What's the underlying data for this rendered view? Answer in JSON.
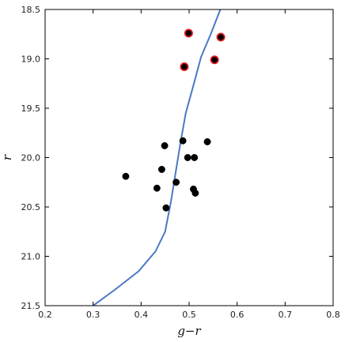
{
  "chart_data": {
    "type": "scatter",
    "xlabel": "g−r",
    "ylabel": "r",
    "xlim": [
      0.2,
      0.8
    ],
    "ylim": [
      21.5,
      18.5
    ],
    "y_inverted": true,
    "grid": false,
    "x_ticks": [
      "0.2",
      "0.3",
      "0.4",
      "0.5",
      "0.6",
      "0.7",
      "0.8"
    ],
    "y_ticks": [
      "18.5",
      "19.0",
      "19.5",
      "20.0",
      "20.5",
      "21.0",
      "21.5"
    ],
    "series": [
      {
        "kind": "line",
        "color": "#4a78c4",
        "points": [
          [
            0.3,
            21.5
          ],
          [
            0.345,
            21.34
          ],
          [
            0.395,
            21.15
          ],
          [
            0.43,
            20.95
          ],
          [
            0.45,
            20.75
          ],
          [
            0.462,
            20.45
          ],
          [
            0.472,
            20.15
          ],
          [
            0.482,
            19.85
          ],
          [
            0.493,
            19.55
          ],
          [
            0.51,
            19.25
          ],
          [
            0.525,
            18.98
          ],
          [
            0.545,
            18.75
          ],
          [
            0.565,
            18.5
          ]
        ]
      },
      {
        "kind": "scatter",
        "marker_color": "#000000",
        "edge_color": "#000000",
        "points": [
          [
            0.368,
            20.19
          ],
          [
            0.433,
            20.31
          ],
          [
            0.443,
            20.12
          ],
          [
            0.449,
            19.88
          ],
          [
            0.452,
            20.51
          ],
          [
            0.473,
            20.25
          ],
          [
            0.487,
            19.83
          ],
          [
            0.497,
            20.0
          ],
          [
            0.509,
            20.32
          ],
          [
            0.511,
            20.0
          ],
          [
            0.513,
            20.36
          ],
          [
            0.538,
            19.84
          ]
        ]
      },
      {
        "kind": "scatter",
        "marker_color": "#000000",
        "edge_color": "#e0191f",
        "points": [
          [
            0.499,
            18.74
          ],
          [
            0.566,
            18.78
          ],
          [
            0.553,
            19.01
          ],
          [
            0.49,
            19.08
          ]
        ]
      }
    ]
  }
}
